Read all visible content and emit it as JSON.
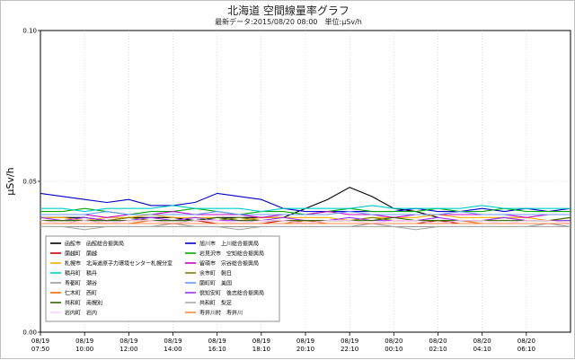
{
  "chart_data": {
    "type": "line",
    "title": "北海道 空間線量率グラフ",
    "subtitle": "最新データ:2015/08/20 08:00　単位:μSv/h",
    "ylabel": "μSv/h",
    "xlabel": "",
    "ylim": [
      0,
      0.1
    ],
    "y_ticks": [
      "0.00",
      "0.05",
      "0.10"
    ],
    "x_tick_labels": [
      [
        "08/19",
        "07:50"
      ],
      [
        "08/19",
        "10:00"
      ],
      [
        "08/19",
        "12:00"
      ],
      [
        "08/19",
        "14:00"
      ],
      [
        "08/19",
        "16:10"
      ],
      [
        "08/19",
        "18:10"
      ],
      [
        "08/19",
        "20:10"
      ],
      [
        "08/19",
        "22:10"
      ],
      [
        "08/20",
        "00:10"
      ],
      [
        "08/20",
        "02:10"
      ],
      [
        "08/20",
        "04:10"
      ],
      [
        "08/20",
        "06:10"
      ]
    ],
    "grid": true,
    "legend_position": "bottom-left",
    "x": [
      "07:50",
      "08:50",
      "09:50",
      "10:50",
      "11:50",
      "12:50",
      "13:50",
      "14:50",
      "15:50",
      "16:50",
      "17:50",
      "18:50",
      "19:50",
      "20:50",
      "21:50",
      "22:50",
      "23:50",
      "00:50",
      "01:50",
      "02:50",
      "03:50",
      "04:50",
      "05:50",
      "06:50",
      "07:50"
    ],
    "series": [
      {
        "name": "函館市　函館総合振興局",
        "color": "#000000",
        "values": [
          0.038,
          0.038,
          0.038,
          0.037,
          0.038,
          0.038,
          0.038,
          0.037,
          0.038,
          0.038,
          0.038,
          0.038,
          0.041,
          0.044,
          0.048,
          0.045,
          0.041,
          0.04,
          0.038,
          null,
          null,
          null,
          null,
          null,
          null
        ]
      },
      {
        "name": "旭川市　上川総合振興局",
        "color": "#0000cc",
        "values": [
          0.046,
          0.045,
          0.044,
          0.043,
          0.044,
          0.042,
          0.042,
          0.043,
          0.046,
          0.045,
          0.044,
          0.041,
          0.04,
          0.04,
          0.04,
          0.04,
          0.04,
          0.041,
          0.04,
          0.04,
          0.041,
          0.04,
          0.041,
          0.04,
          0.041
        ]
      },
      {
        "name": "蘭越町　蘭越",
        "color": "#cc0000",
        "values": [
          0.036,
          0.036,
          0.037,
          0.036,
          0.036,
          0.036,
          0.036,
          0.037,
          0.036,
          0.036,
          0.036,
          0.037,
          0.036,
          0.036,
          0.036,
          0.036,
          0.036,
          0.036,
          0.037,
          0.036,
          0.036,
          0.036,
          0.036,
          0.036,
          0.036
        ]
      },
      {
        "name": "岩見沢市　空知総合振興局",
        "color": "#00aa00",
        "values": [
          0.04,
          0.04,
          0.041,
          0.04,
          0.039,
          0.04,
          0.04,
          0.041,
          0.04,
          0.039,
          0.04,
          0.04,
          0.039,
          0.04,
          0.041,
          0.04,
          0.04,
          0.04,
          0.041,
          0.04,
          0.04,
          0.041,
          0.04,
          0.04,
          0.04
        ]
      },
      {
        "name": "札幌市　北海道原子力環境センター札幌分室",
        "color": "#ffaa00",
        "values": [
          0.038,
          0.038,
          0.037,
          0.038,
          0.038,
          0.039,
          0.038,
          0.038,
          0.038,
          0.037,
          0.038,
          0.038,
          0.038,
          0.038,
          0.037,
          0.038,
          0.038,
          0.038,
          0.039,
          0.038,
          0.038,
          0.038,
          0.038,
          0.037,
          0.038
        ]
      },
      {
        "name": "留萌市　宗谷総合振興局",
        "color": "#cc00cc",
        "values": [
          0.039,
          0.039,
          0.039,
          0.038,
          0.039,
          0.039,
          0.04,
          0.039,
          0.039,
          0.039,
          0.038,
          0.039,
          0.039,
          0.04,
          0.039,
          0.039,
          0.038,
          0.039,
          0.039,
          0.039,
          0.039,
          0.039,
          0.038,
          0.039,
          0.039
        ]
      },
      {
        "name": "積丹町　積丹",
        "color": "#00cccc",
        "values": [
          0.041,
          0.041,
          0.04,
          0.041,
          0.041,
          0.041,
          0.042,
          0.041,
          0.041,
          0.041,
          0.04,
          0.041,
          0.041,
          0.041,
          0.041,
          0.042,
          0.041,
          0.041,
          0.041,
          0.041,
          0.042,
          0.041,
          0.041,
          0.041,
          0.041
        ]
      },
      {
        "name": "余市町　朝日",
        "color": "#808000",
        "values": [
          0.037,
          0.037,
          0.037,
          0.037,
          0.038,
          0.037,
          0.037,
          0.037,
          0.037,
          0.038,
          0.037,
          0.037,
          0.037,
          0.037,
          0.037,
          0.038,
          0.037,
          0.037,
          0.037,
          0.037,
          0.037,
          0.038,
          0.037,
          0.037,
          0.037
        ]
      },
      {
        "name": "寿都町　潮谷",
        "color": "#999999",
        "values": [
          0.035,
          0.035,
          0.035,
          0.035,
          0.035,
          0.035,
          0.036,
          0.035,
          0.035,
          0.035,
          0.035,
          0.035,
          0.035,
          0.035,
          0.035,
          0.036,
          0.035,
          0.035,
          0.035,
          0.035,
          0.035,
          0.035,
          0.035,
          0.036,
          0.035
        ]
      },
      {
        "name": "蘭町町　美国",
        "color": "#6699ff",
        "values": [
          0.039,
          0.039,
          0.039,
          0.04,
          0.039,
          0.039,
          0.039,
          0.039,
          0.04,
          0.039,
          0.039,
          0.039,
          0.039,
          0.039,
          0.04,
          0.039,
          0.039,
          0.039,
          0.039,
          0.04,
          0.039,
          0.039,
          0.039,
          0.039,
          0.039
        ]
      },
      {
        "name": "仁木町　西町",
        "color": "#ff6600",
        "values": [
          0.036,
          0.036,
          0.036,
          0.036,
          0.036,
          0.037,
          0.036,
          0.036,
          0.036,
          0.036,
          0.036,
          0.036,
          0.037,
          0.036,
          0.036,
          0.036,
          0.036,
          0.036,
          0.036,
          0.037,
          0.036,
          0.036,
          0.036,
          0.036,
          0.036
        ]
      },
      {
        "name": "倶知安町　後志総合振興局",
        "color": "#9933ff",
        "values": [
          0.038,
          0.037,
          0.038,
          0.037,
          0.037,
          0.038,
          0.037,
          0.038,
          0.037,
          0.037,
          0.037,
          0.038,
          0.037,
          0.037,
          0.038,
          0.037,
          0.037,
          0.037,
          0.038,
          0.037,
          0.037,
          0.038,
          0.037,
          0.037,
          0.037
        ]
      },
      {
        "name": "共和町　南幌別",
        "color": "#336600",
        "values": [
          0.037,
          0.037,
          0.037,
          0.037,
          0.037,
          0.037,
          0.037,
          0.037,
          0.038,
          0.037,
          0.037,
          0.037,
          0.037,
          0.037,
          0.037,
          0.037,
          0.038,
          0.037,
          0.037,
          0.037,
          0.037,
          0.037,
          0.037,
          0.037,
          0.038
        ]
      },
      {
        "name": "共和町　梨足",
        "color": "#aaaaaa",
        "values": [
          0.035,
          0.035,
          0.034,
          0.035,
          0.035,
          0.035,
          0.035,
          0.035,
          0.035,
          0.034,
          0.035,
          0.035,
          0.035,
          0.035,
          0.035,
          0.035,
          0.035,
          0.034,
          0.035,
          0.035,
          0.035,
          0.035,
          0.035,
          0.035,
          0.035
        ]
      },
      {
        "name": "岩内町　岩内",
        "color": "#ffccff",
        "values": [
          0.037,
          0.036,
          0.037,
          0.036,
          0.037,
          0.037,
          0.036,
          0.037,
          0.037,
          0.036,
          0.037,
          0.037,
          0.036,
          0.037,
          0.037,
          0.036,
          0.037,
          0.037,
          0.036,
          0.037,
          0.037,
          0.036,
          0.037,
          0.037,
          0.036
        ]
      },
      {
        "name": "寿井川村　寿井川",
        "color": "#ff8844",
        "values": [
          0.036,
          0.036,
          0.036,
          0.036,
          0.036,
          0.036,
          0.036,
          0.036,
          0.036,
          0.036,
          0.036,
          0.036,
          0.036,
          0.036,
          0.036,
          0.036,
          0.036,
          0.036,
          0.036,
          0.036,
          0.036,
          0.036,
          0.036,
          0.036,
          0.036
        ]
      }
    ]
  }
}
